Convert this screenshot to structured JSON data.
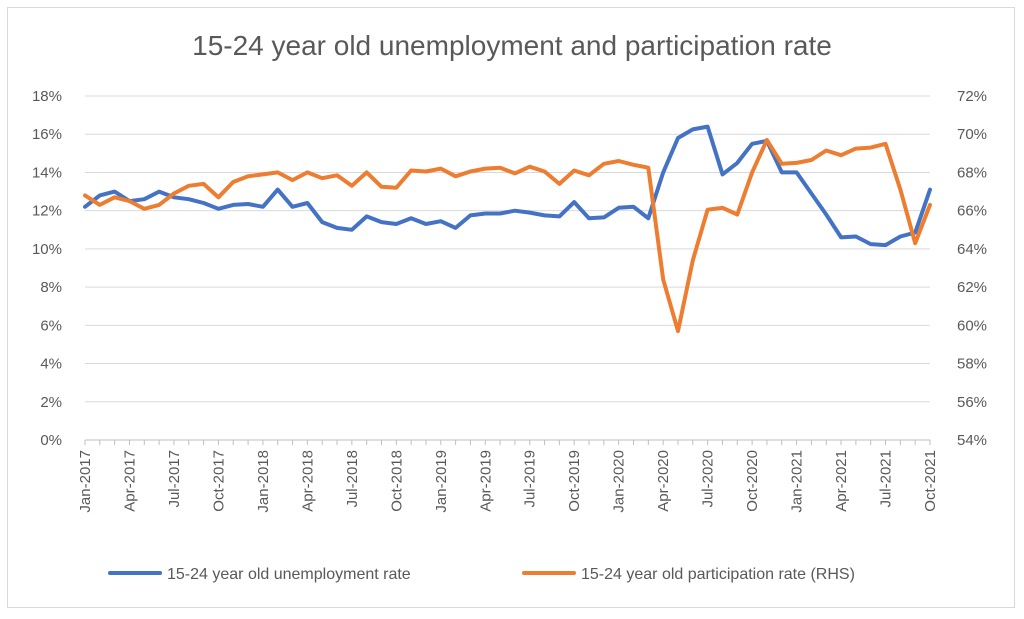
{
  "chart_data": {
    "type": "line",
    "title": "15-24 year old unemployment and participation rate",
    "x_tick_labels": [
      "Jan-2017",
      "Apr-2017",
      "Jul-2017",
      "Oct-2017",
      "Jan-2018",
      "Apr-2018",
      "Jul-2018",
      "Oct-2018",
      "Jan-2019",
      "Apr-2019",
      "Jul-2019",
      "Oct-2019",
      "Jan-2020",
      "Apr-2020",
      "Jul-2020",
      "Oct-2020",
      "Jan-2021",
      "Apr-2021",
      "Jul-2021",
      "Oct-2021"
    ],
    "x_start": "Jan-2017",
    "x_end": "Oct-2021",
    "y_left": {
      "ticks": [
        "0%",
        "2%",
        "4%",
        "6%",
        "8%",
        "10%",
        "12%",
        "14%",
        "16%",
        "18%"
      ],
      "ylim": [
        0,
        18
      ]
    },
    "y_right": {
      "ticks": [
        "54%",
        "56%",
        "58%",
        "60%",
        "62%",
        "64%",
        "66%",
        "68%",
        "70%",
        "72%"
      ],
      "ylim": [
        54,
        72
      ]
    },
    "grid": true,
    "legend_position": "bottom",
    "series": [
      {
        "name": "15-24 year old unemployment rate",
        "axis": "left",
        "color": "#4472c4",
        "values": [
          12.2,
          12.8,
          13.0,
          12.5,
          12.6,
          13.0,
          12.7,
          12.6,
          12.4,
          12.1,
          12.3,
          12.35,
          12.2,
          13.1,
          12.2,
          12.4,
          11.4,
          11.1,
          11.0,
          11.7,
          11.4,
          11.3,
          11.6,
          11.3,
          11.45,
          11.1,
          11.75,
          11.85,
          11.85,
          12.0,
          11.9,
          11.75,
          11.7,
          12.45,
          11.6,
          11.65,
          12.15,
          12.2,
          11.6,
          14.0,
          15.8,
          16.25,
          16.4,
          13.9,
          14.5,
          15.5,
          15.65,
          14.0,
          14.0,
          12.9,
          11.8,
          10.6,
          10.65,
          10.25,
          10.2,
          10.65,
          10.85,
          13.1
        ]
      },
      {
        "name": "15-24 year old participation rate (RHS)",
        "axis": "right",
        "color": "#ed7d31",
        "values": [
          66.8,
          66.3,
          66.7,
          66.5,
          66.1,
          66.3,
          66.9,
          67.3,
          67.4,
          66.7,
          67.5,
          67.8,
          67.9,
          68.0,
          67.6,
          68.0,
          67.7,
          67.85,
          67.3,
          68.0,
          67.25,
          67.2,
          68.1,
          68.05,
          68.2,
          67.8,
          68.05,
          68.2,
          68.25,
          67.95,
          68.3,
          68.05,
          67.4,
          68.1,
          67.85,
          68.45,
          68.6,
          68.4,
          68.25,
          62.4,
          59.7,
          63.4,
          66.05,
          66.15,
          65.8,
          68.0,
          69.7,
          68.45,
          68.5,
          68.65,
          69.15,
          68.9,
          69.25,
          69.3,
          69.5,
          67.1,
          64.3,
          66.3
        ]
      }
    ]
  }
}
